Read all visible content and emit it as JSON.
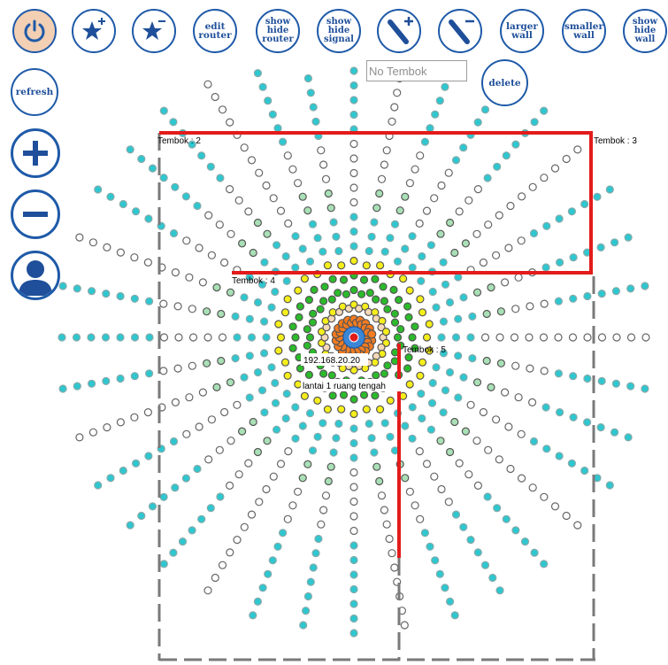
{
  "toolbar": {
    "power_icon": "power-icon",
    "add_router_icon": "star-plus-icon",
    "remove_router_icon": "star-minus-icon",
    "edit_router": "edit router",
    "show_hide_router": "show hide router",
    "show_hide_signal": "show hide signal",
    "add_wall_icon": "wall-plus-icon",
    "remove_wall_icon": "wall-minus-icon",
    "larger_wall": "larger wall",
    "smaller_wall": "smaller wall",
    "show_hide_wall": "show hide wall",
    "delete": "delete",
    "wall_name_placeholder": "No Tembok"
  },
  "side": {
    "refresh": "refresh",
    "zoom_in_icon": "plus-icon",
    "zoom_out_icon": "minus-icon",
    "user_icon": "user-icon"
  },
  "walls": [
    {
      "label": "Tembok : 2"
    },
    {
      "label": "Tembok : 3"
    },
    {
      "label": "Tembok : 4"
    },
    {
      "label": "Tembok : 5"
    }
  ],
  "router": {
    "ip": "192.168.20.20",
    "name": "lantai 1 ruang tengah"
  },
  "colors": {
    "accent": "#1f5aa8",
    "wall": "#e31b1b",
    "dashed_room": "#7a7a7a",
    "signal_strong": "#f47b20",
    "signal_good": "#2bbb2b",
    "signal_fair": "#f5ee1a",
    "signal_medium": "#2ec7d0",
    "signal_weak": "#a9e0b6",
    "signal_none": "#ffffff"
  }
}
